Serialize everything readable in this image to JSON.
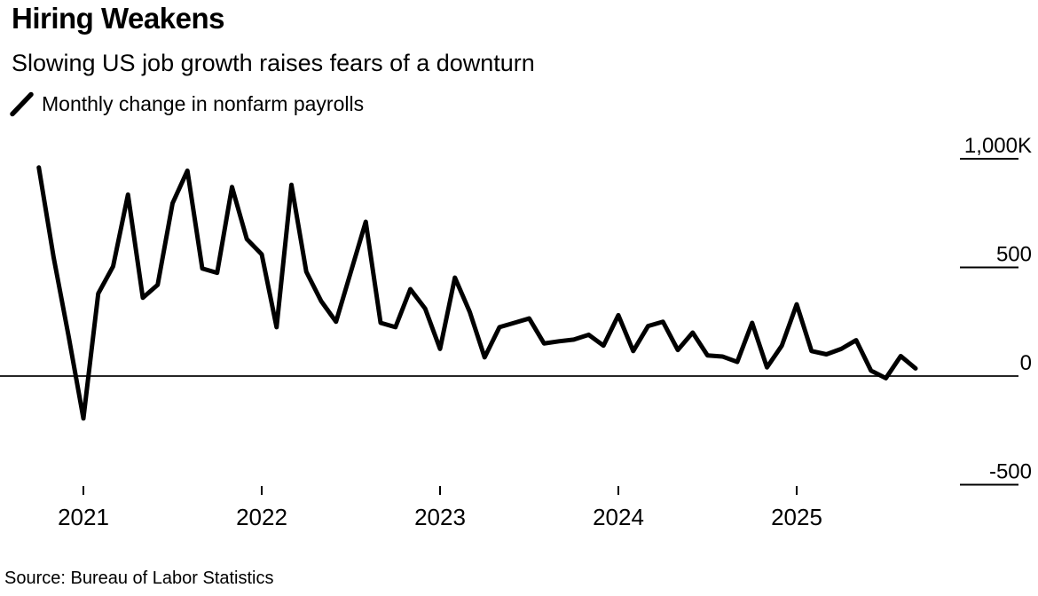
{
  "header": {
    "title": "Hiring Weakens",
    "subtitle": "Slowing US job growth raises fears of a downturn"
  },
  "legend": {
    "label": "Monthly change in nonfarm payrolls",
    "icon": "line-swatch-icon"
  },
  "footer": {
    "source": "Source: Bureau of Labor Statistics"
  },
  "colors": {
    "line": "#000000",
    "zero_line": "#262626",
    "tick": "#000000",
    "text": "#000000",
    "background": "#ffffff"
  },
  "chart_data": {
    "type": "line",
    "title": "Hiring Weakens",
    "subtitle": "Slowing US job growth raises fears of a downturn",
    "series_name": "Monthly change in nonfarm payrolls",
    "unit": "thousands of jobs (K)",
    "grid": "none",
    "legend_position": "top-left",
    "y_axis": {
      "side": "right",
      "range": [
        -620,
        1120
      ],
      "ticks": [
        {
          "value": 1000,
          "label": "1,000K"
        },
        {
          "value": 500,
          "label": "500"
        },
        {
          "value": 0,
          "label": "0"
        },
        {
          "value": -500,
          "label": "-500"
        }
      ]
    },
    "x_axis": {
      "ticks": [
        {
          "month": "2021-01",
          "label": "2021"
        },
        {
          "month": "2022-01",
          "label": "2022"
        },
        {
          "month": "2023-01",
          "label": "2023"
        },
        {
          "month": "2024-01",
          "label": "2024"
        },
        {
          "month": "2025-01",
          "label": "2025"
        }
      ]
    },
    "x": [
      "2020-10",
      "2020-11",
      "2020-12",
      "2021-01",
      "2021-02",
      "2021-03",
      "2021-04",
      "2021-05",
      "2021-06",
      "2021-07",
      "2021-08",
      "2021-09",
      "2021-10",
      "2021-11",
      "2021-12",
      "2022-01",
      "2022-02",
      "2022-03",
      "2022-04",
      "2022-05",
      "2022-06",
      "2022-07",
      "2022-08",
      "2022-09",
      "2022-10",
      "2022-11",
      "2022-12",
      "2023-01",
      "2023-02",
      "2023-03",
      "2023-04",
      "2023-05",
      "2023-06",
      "2023-07",
      "2023-08",
      "2023-09",
      "2023-10",
      "2023-11",
      "2023-12",
      "2024-01",
      "2024-02",
      "2024-03",
      "2024-04",
      "2024-05",
      "2024-06",
      "2024-07",
      "2024-08",
      "2024-09",
      "2024-10",
      "2024-11",
      "2024-12",
      "2025-01",
      "2025-02",
      "2025-03",
      "2025-04",
      "2025-05",
      "2025-06",
      "2025-07",
      "2025-08",
      "2025-09"
    ],
    "values": [
      960,
      545,
      185,
      -195,
      380,
      505,
      835,
      360,
      420,
      795,
      945,
      495,
      475,
      870,
      630,
      560,
      225,
      880,
      480,
      345,
      250,
      480,
      710,
      245,
      225,
      400,
      310,
      125,
      453,
      295,
      86,
      225,
      245,
      265,
      150,
      160,
      168,
      190,
      140,
      280,
      115,
      230,
      250,
      120,
      200,
      95,
      90,
      65,
      245,
      40,
      140,
      330,
      115,
      100,
      125,
      165,
      25,
      -10,
      92,
      35
    ]
  }
}
